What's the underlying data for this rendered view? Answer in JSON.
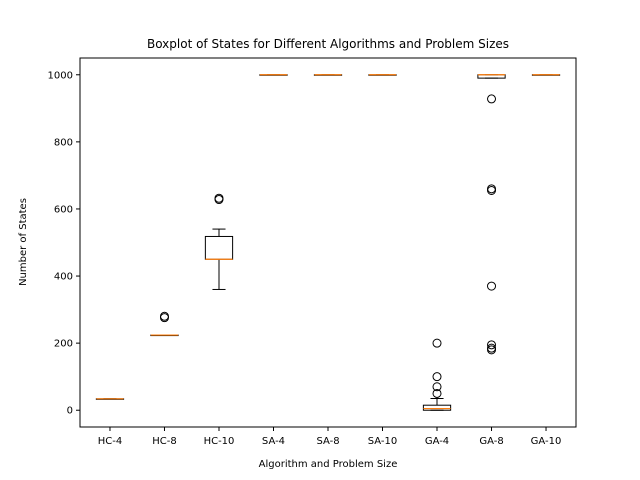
{
  "chart_data": {
    "type": "boxplot",
    "title": "Boxplot of States for Different Algorithms and Problem Sizes",
    "xlabel": "Algorithm and Problem Size",
    "ylabel": "Number of States",
    "ylim": [
      -50,
      1050
    ],
    "yticks": [
      0,
      200,
      400,
      600,
      800,
      1000
    ],
    "grid": false,
    "colors": {
      "box": "#000000",
      "median": "#ff7f0e",
      "flier": "#000000"
    },
    "categories": [
      "HC-4",
      "HC-8",
      "HC-10",
      "SA-4",
      "SA-8",
      "SA-10",
      "GA-4",
      "GA-8",
      "GA-10"
    ],
    "boxes": [
      {
        "label": "HC-4",
        "whislo": 34,
        "q1": 34,
        "med": 34,
        "q3": 34,
        "whishi": 34,
        "fliers": []
      },
      {
        "label": "HC-8",
        "whislo": 224,
        "q1": 224,
        "med": 224,
        "q3": 224,
        "whishi": 224,
        "fliers": [
          276,
          280
        ]
      },
      {
        "label": "HC-10",
        "whislo": 360,
        "q1": 450,
        "med": 450,
        "q3": 518,
        "whishi": 540,
        "fliers": [
          628,
          632
        ]
      },
      {
        "label": "SA-4",
        "whislo": 1000,
        "q1": 1000,
        "med": 1000,
        "q3": 1000,
        "whishi": 1000,
        "fliers": []
      },
      {
        "label": "SA-8",
        "whislo": 1000,
        "q1": 1000,
        "med": 1000,
        "q3": 1000,
        "whishi": 1000,
        "fliers": []
      },
      {
        "label": "SA-10",
        "whislo": 1000,
        "q1": 1000,
        "med": 1000,
        "q3": 1000,
        "whishi": 1000,
        "fliers": []
      },
      {
        "label": "GA-4",
        "whislo": 0,
        "q1": 0,
        "med": 5,
        "q3": 15,
        "whishi": 35,
        "fliers": [
          50,
          70,
          100,
          200
        ]
      },
      {
        "label": "GA-8",
        "whislo": 990,
        "q1": 990,
        "med": 1000,
        "q3": 1000,
        "whishi": 1000,
        "fliers": [
          180,
          185,
          195,
          370,
          655,
          660,
          928
        ]
      },
      {
        "label": "GA-10",
        "whislo": 1000,
        "q1": 1000,
        "med": 1000,
        "q3": 1000,
        "whishi": 1000,
        "fliers": []
      }
    ]
  }
}
